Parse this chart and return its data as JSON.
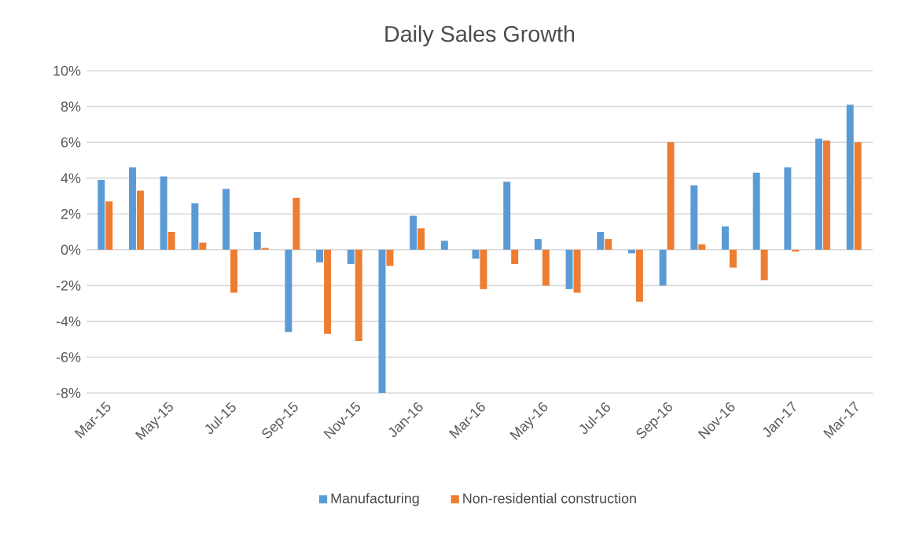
{
  "chart_data": {
    "type": "bar",
    "title": "Daily Sales Growth",
    "categories": [
      "Mar-15",
      null,
      "May-15",
      null,
      "Jul-15",
      null,
      "Sep-15",
      null,
      "Nov-15",
      null,
      "Jan-16",
      null,
      "Mar-16",
      null,
      "May-16",
      null,
      "Jul-16",
      null,
      "Sep-16",
      null,
      "Nov-16",
      null,
      "Jan-17",
      null,
      "Mar-17"
    ],
    "series": [
      {
        "name": "Manufacturing",
        "color": "#5b9bd5",
        "values": [
          3.9,
          4.6,
          4.1,
          2.6,
          3.4,
          1.0,
          -4.6,
          -0.7,
          -0.8,
          -8.0,
          1.9,
          0.5,
          -0.5,
          3.8,
          0.6,
          -2.2,
          1.0,
          -0.2,
          -2.0,
          3.6,
          1.3,
          4.3,
          4.6,
          6.2,
          8.1
        ]
      },
      {
        "name": "Non-residential construction",
        "color": "#ed7d31",
        "values": [
          2.7,
          3.3,
          1.0,
          0.4,
          -2.4,
          0.1,
          2.9,
          -4.7,
          -5.1,
          -0.9,
          1.2,
          0.0,
          -2.2,
          -0.8,
          -2.0,
          -2.4,
          0.6,
          -2.9,
          6.0,
          0.3,
          -1.0,
          -1.7,
          -0.1,
          6.1,
          6.0
        ]
      }
    ],
    "ylim": [
      -8,
      10
    ],
    "yticks": [
      {
        "value": -8,
        "label": "-8%"
      },
      {
        "value": -6,
        "label": "-6%"
      },
      {
        "value": -4,
        "label": "-4%"
      },
      {
        "value": -2,
        "label": "-2%"
      },
      {
        "value": 0,
        "label": "0%"
      },
      {
        "value": 2,
        "label": "2%"
      },
      {
        "value": 4,
        "label": "4%"
      },
      {
        "value": 6,
        "label": "6%"
      },
      {
        "value": 8,
        "label": "8%"
      },
      {
        "value": 10,
        "label": "10%"
      }
    ],
    "grid": "y",
    "legend": "bottom"
  }
}
